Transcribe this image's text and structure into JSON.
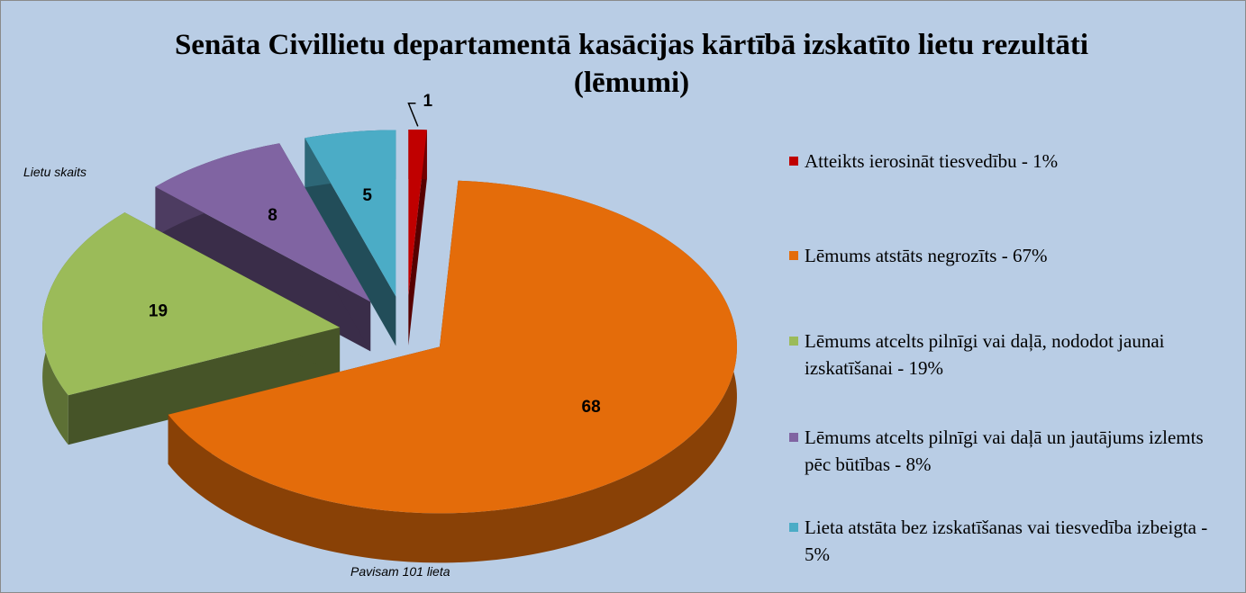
{
  "chart_data": {
    "type": "pie",
    "title": "Senāta Civillietu departamentā kasācijas kārtībā izskatīto lietu rezultāti (lēmumi)",
    "categories": [
      "Atteikts ierosināt tiesvedību - 1%",
      "Lēmums atstāts negrozīts - 67%",
      "Lēmums atcelts pilnīgi vai daļā, nododot jaunai izskatīšanai - 19%",
      "Lēmums atcelts pilnīgi vai daļā un jautājums izlemts pēc būtības - 8%",
      "Lieta atstāta bez izskatīšanas vai tiesvedība izbeigta - 5%"
    ],
    "values": [
      1,
      68,
      19,
      8,
      5
    ],
    "colors": [
      "#c00000",
      "#e46c0a",
      "#9bbb59",
      "#8064a2",
      "#4bacc6"
    ],
    "annotations": [
      "Lietu skaits",
      "Pavisam 101 lieta"
    ],
    "legend": "right"
  }
}
